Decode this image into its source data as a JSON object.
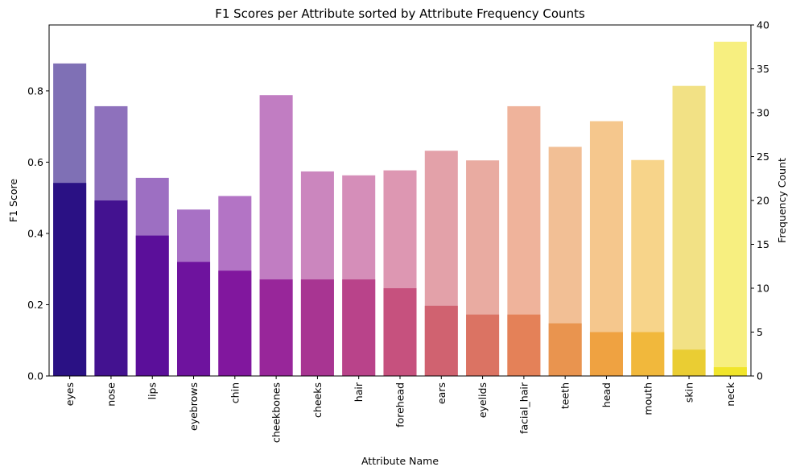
{
  "chart_data": {
    "type": "bar",
    "title": "F1 Scores per Attribute sorted by Attribute Frequency Counts",
    "xlabel": "Attribute Name",
    "ylabel": "F1 Score",
    "y2label": "Frequency Count",
    "categories": [
      "eyes",
      "nose",
      "lips",
      "eyebrows",
      "chin",
      "cheekbones",
      "cheeks",
      "hair",
      "forehead",
      "ears",
      "eyelids",
      "facial_hair",
      "teeth",
      "head",
      "mouth",
      "skin",
      "neck"
    ],
    "ylim": [
      0,
      0.985
    ],
    "y2lim": [
      0,
      40
    ],
    "yticks": [
      "0.0",
      "0.2",
      "0.4",
      "0.6",
      "0.8"
    ],
    "y2ticks": [
      "0",
      "5",
      "10",
      "15",
      "20",
      "25",
      "30",
      "35",
      "40"
    ],
    "series": [
      {
        "name": "",
        "axis": "left",
        "values": [
          0.877,
          0.757,
          0.556,
          0.467,
          0.505,
          0.788,
          0.574,
          0.563,
          0.577,
          0.632,
          0.605,
          0.757,
          0.643,
          0.715,
          0.606,
          0.814,
          0.938
        ],
        "opacity": 0.6
      },
      {
        "name": "",
        "axis": "right",
        "values": [
          22,
          20,
          16,
          13,
          12,
          11,
          11,
          11,
          10,
          8,
          7,
          7,
          6,
          5,
          5,
          3,
          1
        ],
        "opacity": 1.0
      }
    ],
    "palette": [
      "#2a1184",
      "#431290",
      "#5b0f9a",
      "#6e139e",
      "#81179e",
      "#98269a",
      "#a83592",
      "#b9438a",
      "#c6517e",
      "#d06270",
      "#db7363",
      "#e48158",
      "#e9944f",
      "#efa241",
      "#f1b83c",
      "#eacd33",
      "#f1e52b"
    ],
    "grid": false,
    "legend": "none"
  }
}
